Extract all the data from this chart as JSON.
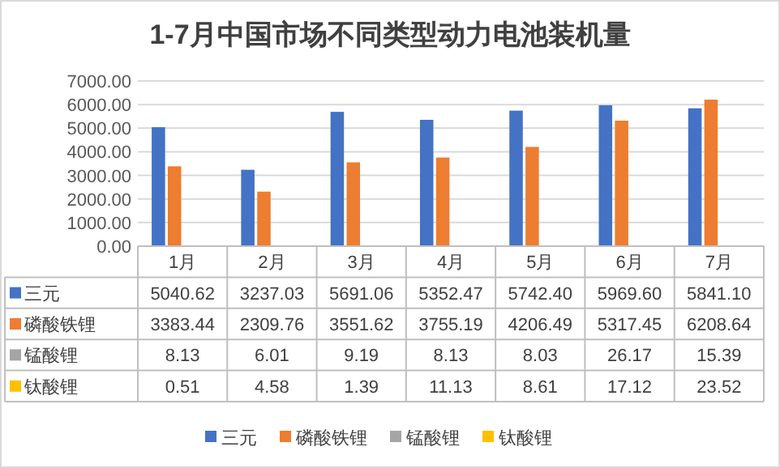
{
  "chart_data": {
    "type": "bar",
    "title": "1-7月中国市场不同类型动力电池装机量",
    "categories": [
      "1月",
      "2月",
      "3月",
      "4月",
      "5月",
      "6月",
      "7月"
    ],
    "series": [
      {
        "name": "三元",
        "color": "#4472c4",
        "values": [
          5040.62,
          3237.03,
          5691.06,
          5352.47,
          5742.4,
          5969.6,
          5841.1
        ],
        "value_labels": [
          "5040.62",
          "3237.03",
          "5691.06",
          "5352.47",
          "5742.40",
          "5969.60",
          "5841.10"
        ]
      },
      {
        "name": "磷酸铁锂",
        "color": "#ed7d31",
        "values": [
          3383.44,
          2309.76,
          3551.62,
          3755.19,
          4206.49,
          5317.45,
          6208.64
        ],
        "value_labels": [
          "3383.44",
          "2309.76",
          "3551.62",
          "3755.19",
          "4206.49",
          "5317.45",
          "6208.64"
        ]
      },
      {
        "name": "锰酸锂",
        "color": "#a5a5a5",
        "values": [
          8.13,
          6.01,
          9.19,
          8.13,
          8.03,
          26.17,
          15.39
        ],
        "value_labels": [
          "8.13",
          "6.01",
          "9.19",
          "8.13",
          "8.03",
          "26.17",
          "15.39"
        ]
      },
      {
        "name": "钛酸锂",
        "color": "#ffc000",
        "values": [
          0.51,
          4.58,
          1.39,
          11.13,
          8.61,
          17.12,
          23.52
        ],
        "value_labels": [
          "0.51",
          "4.58",
          "1.39",
          "11.13",
          "8.61",
          "17.12",
          "23.52"
        ]
      }
    ],
    "ylim": [
      0,
      7000
    ],
    "yticks": [
      {
        "value": 0,
        "label": "0.00"
      },
      {
        "value": 1000,
        "label": "1000.00"
      },
      {
        "value": 2000,
        "label": "2000.00"
      },
      {
        "value": 3000,
        "label": "3000.00"
      },
      {
        "value": 4000,
        "label": "4000.00"
      },
      {
        "value": 5000,
        "label": "5000.00"
      },
      {
        "value": 6000,
        "label": "6000.00"
      },
      {
        "value": 7000,
        "label": "7000.00"
      }
    ],
    "grid": "y",
    "legend": "bottom"
  }
}
